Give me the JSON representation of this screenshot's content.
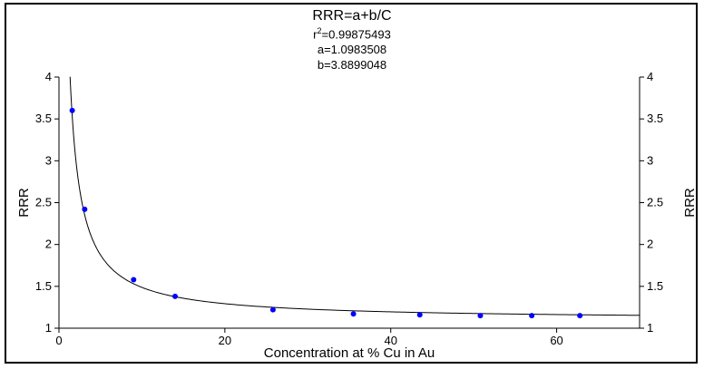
{
  "chart_data": {
    "type": "scatter",
    "title": "RRR=a+b/C",
    "stats": {
      "r2_prefix": "r",
      "r2_sup": "2",
      "r2_value": "=0.99875493",
      "a_line": "a=1.0983508",
      "b_line": "b=3.8899048"
    },
    "xlabel": "Concentration at % Cu in Au",
    "ylabel_left": "RRR",
    "ylabel_right": "RRR",
    "xlim": [
      0,
      70
    ],
    "ylim": [
      1,
      4
    ],
    "xticks": [
      0,
      20,
      40,
      60
    ],
    "yticks": [
      1,
      1.5,
      2,
      2.5,
      3,
      3.5,
      4
    ],
    "ytick_labels": [
      "1",
      "1.5",
      "2",
      "2.5",
      "3",
      "3.5",
      "4"
    ],
    "grid": false,
    "points": {
      "x": [
        1.6,
        3.1,
        9.0,
        14.0,
        25.8,
        35.5,
        43.5,
        50.8,
        57.0,
        62.8
      ],
      "y": [
        3.6,
        2.42,
        1.58,
        1.38,
        1.22,
        1.17,
        1.16,
        1.15,
        1.15,
        1.15
      ]
    },
    "fit": {
      "a": 1.0983508,
      "b": 3.8899048,
      "x_start": 1.32,
      "x_end": 70
    },
    "colors": {
      "points": "#0000ff",
      "fit": "#000000",
      "axes": "#000000"
    }
  }
}
